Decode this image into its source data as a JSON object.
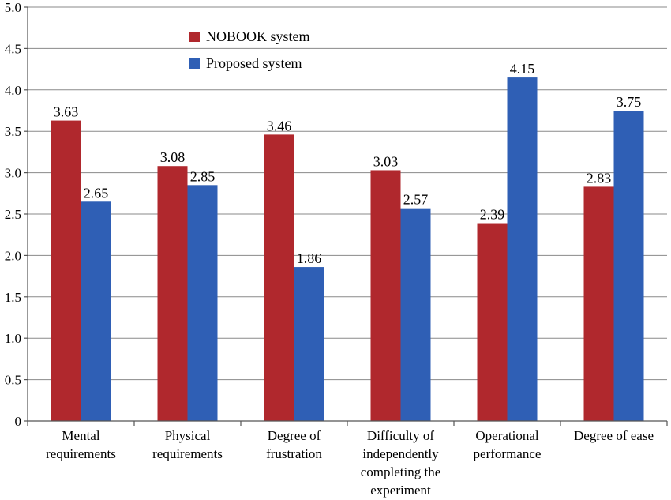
{
  "chart_data": {
    "type": "bar",
    "title": "",
    "xlabel": "",
    "ylabel": "",
    "ylim": [
      0,
      5
    ],
    "yticks": [
      "0",
      "0.5",
      "1.0",
      "1.5",
      "2.0",
      "2.5",
      "3.0",
      "3.5",
      "4.0",
      "4.5",
      "5.0"
    ],
    "grid": true,
    "legend_position": "top-center",
    "categories": [
      [
        "Mental",
        "requirements"
      ],
      [
        "Physical",
        "requirements"
      ],
      [
        "Degree of",
        "frustration"
      ],
      [
        "Difficulty of",
        "independently",
        "completing the",
        "experiment"
      ],
      [
        "Operational",
        "performance"
      ],
      [
        "Degree of ease"
      ]
    ],
    "series": [
      {
        "name": "NOBOOK system",
        "color": "#b0282d",
        "values": [
          3.63,
          3.08,
          3.46,
          3.03,
          2.39,
          2.83
        ],
        "labels": [
          "3.63",
          "3.08",
          "3.46",
          "3.03",
          "2.39",
          "2.83"
        ]
      },
      {
        "name": "Proposed system",
        "color": "#2f5fb5",
        "values": [
          2.65,
          2.85,
          1.86,
          2.57,
          4.15,
          3.75
        ],
        "labels": [
          "2.65",
          "2.85",
          "1.86",
          "2.57",
          "4.15",
          "3.75"
        ]
      }
    ]
  }
}
